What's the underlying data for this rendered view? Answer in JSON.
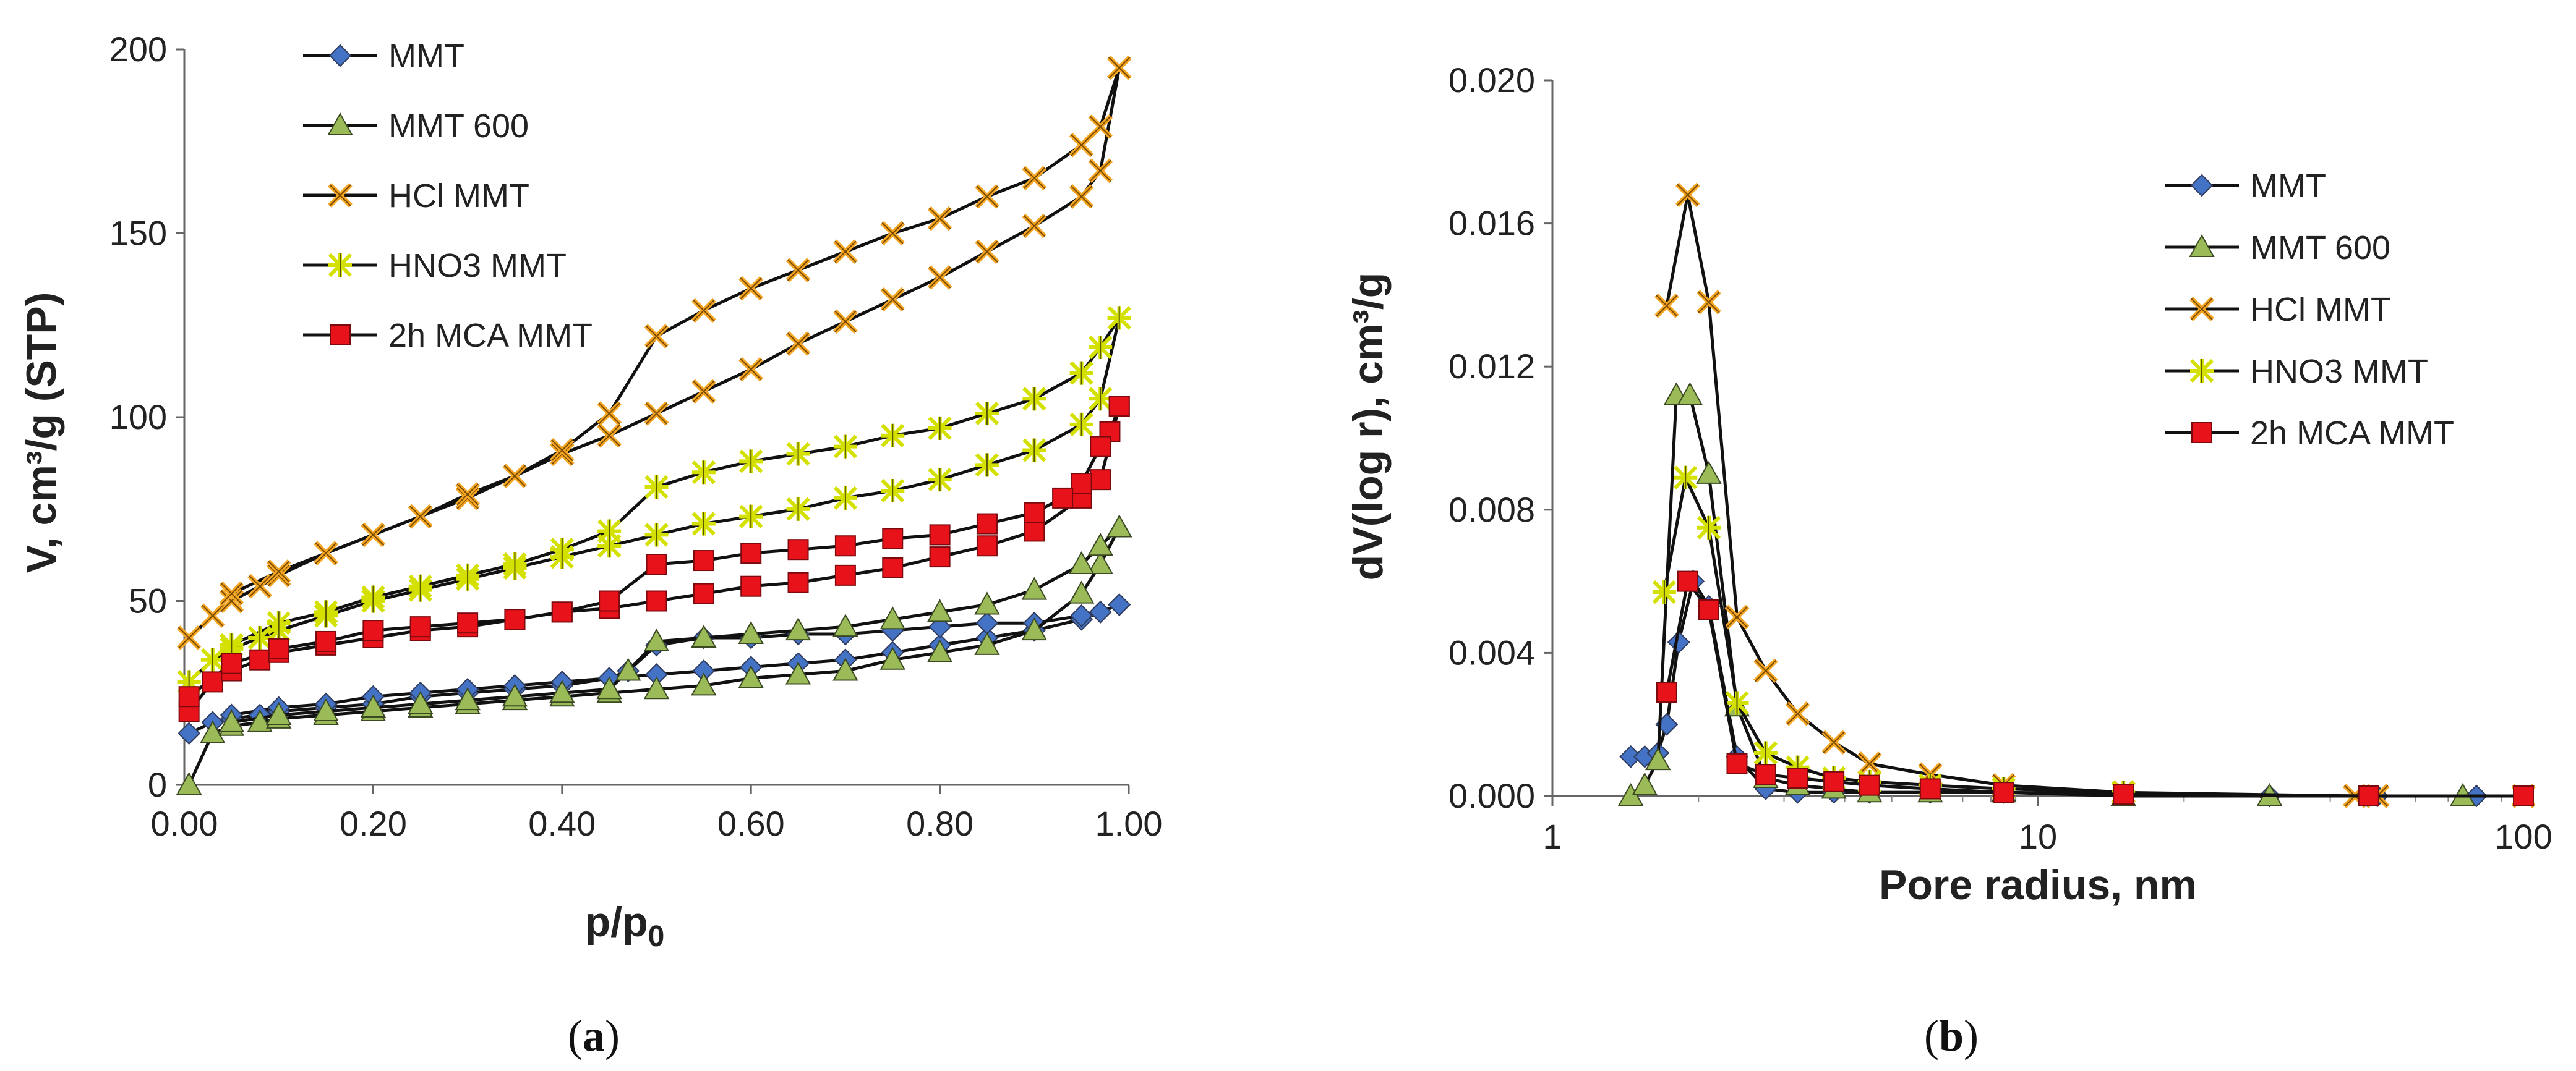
{
  "chart_data": [
    {
      "type": "line",
      "subplot_label": "a",
      "title": "",
      "xlabel": "p/p",
      "xlabel_sub": "0",
      "ylabel": "V, cm³/g (STP)",
      "xlim": [
        0,
        1
      ],
      "ylim": [
        0,
        200
      ],
      "xticks": [
        "0.00",
        "0.20",
        "0.40",
        "0.60",
        "0.80",
        "1.00"
      ],
      "yticks": [
        "0",
        "50",
        "100",
        "150",
        "200"
      ],
      "legend_position": "top-left",
      "series": [
        {
          "name": "MMT",
          "color": "#4472C4",
          "marker": "diamond",
          "adsorption": {
            "x": [
              0.005,
              0.03,
              0.05,
              0.08,
              0.1,
              0.15,
              0.2,
              0.25,
              0.3,
              0.35,
              0.4,
              0.45,
              0.5,
              0.55,
              0.6,
              0.65,
              0.7,
              0.75,
              0.8,
              0.85,
              0.9,
              0.95,
              0.97,
              0.99
            ],
            "y": [
              14,
              17,
              18,
              19,
              20,
              21,
              22,
              24,
              25,
              26,
              27,
              29,
              30,
              31,
              32,
              33,
              34,
              36,
              38,
              40,
              42,
              45,
              47,
              49
            ]
          },
          "desorption": {
            "x": [
              0.99,
              0.97,
              0.95,
              0.9,
              0.85,
              0.8,
              0.75,
              0.7,
              0.65,
              0.6,
              0.55,
              0.5,
              0.47,
              0.45,
              0.4,
              0.35,
              0.3,
              0.25,
              0.2,
              0.15,
              0.1,
              0.05
            ],
            "y": [
              49,
              47,
              46,
              44,
              44,
              43,
              42,
              41,
              41,
              40,
              40,
              38,
              31,
              29,
              28,
              27,
              26,
              25,
              24,
              22,
              21,
              19
            ]
          }
        },
        {
          "name": "MMT 600",
          "color": "#9BBB59",
          "marker": "triangle",
          "adsorption": {
            "x": [
              0.005,
              0.03,
              0.05,
              0.08,
              0.1,
              0.15,
              0.2,
              0.25,
              0.3,
              0.35,
              0.4,
              0.45,
              0.5,
              0.55,
              0.6,
              0.65,
              0.7,
              0.75,
              0.8,
              0.85,
              0.9,
              0.95,
              0.97,
              0.99
            ],
            "y": [
              0,
              14,
              16,
              17,
              18,
              19,
              20,
              21,
              22,
              23,
              24,
              25,
              26,
              27,
              29,
              30,
              31,
              34,
              36,
              38,
              42,
              52,
              60,
              70
            ]
          },
          "desorption": {
            "x": [
              0.99,
              0.97,
              0.95,
              0.9,
              0.85,
              0.8,
              0.75,
              0.7,
              0.65,
              0.6,
              0.55,
              0.5,
              0.47,
              0.45,
              0.4,
              0.35,
              0.3,
              0.25,
              0.2,
              0.15,
              0.1,
              0.05
            ],
            "y": [
              70,
              65,
              60,
              53,
              49,
              47,
              45,
              43,
              42,
              41,
              40,
              39,
              31,
              26,
              25,
              24,
              23,
              22,
              21,
              20,
              19,
              17
            ]
          }
        },
        {
          "name": "HCl MMT",
          "color": "#F5A623",
          "marker": "x",
          "adsorption": {
            "x": [
              0.005,
              0.03,
              0.05,
              0.08,
              0.1,
              0.15,
              0.2,
              0.25,
              0.3,
              0.35,
              0.4,
              0.45,
              0.5,
              0.55,
              0.6,
              0.65,
              0.7,
              0.75,
              0.8,
              0.85,
              0.9,
              0.95,
              0.97,
              0.99
            ],
            "y": [
              40,
              46,
              50,
              54,
              57,
              63,
              68,
              73,
              78,
              84,
              90,
              95,
              101,
              107,
              113,
              120,
              126,
              132,
              138,
              145,
              152,
              160,
              167,
              195
            ]
          },
          "desorption": {
            "x": [
              0.99,
              0.97,
              0.95,
              0.9,
              0.85,
              0.8,
              0.75,
              0.7,
              0.65,
              0.6,
              0.55,
              0.5,
              0.45,
              0.4,
              0.35,
              0.3,
              0.25,
              0.2,
              0.15,
              0.1,
              0.05
            ],
            "y": [
              195,
              179,
              174,
              165,
              160,
              154,
              150,
              145,
              140,
              135,
              129,
              122,
              101,
              91,
              84,
              79,
              73,
              68,
              63,
              58,
              52
            ]
          }
        },
        {
          "name": "HNO3 MMT",
          "color": "#D4E000",
          "marker": "asterisk",
          "adsorption": {
            "x": [
              0.005,
              0.03,
              0.05,
              0.08,
              0.1,
              0.15,
              0.2,
              0.25,
              0.3,
              0.35,
              0.4,
              0.45,
              0.5,
              0.55,
              0.6,
              0.65,
              0.7,
              0.75,
              0.8,
              0.85,
              0.9,
              0.95,
              0.97,
              0.99
            ],
            "y": [
              28,
              34,
              37,
              40,
              42,
              46,
              50,
              53,
              56,
              59,
              62,
              65,
              68,
              71,
              73,
              75,
              78,
              80,
              83,
              87,
              91,
              98,
              105,
              127
            ]
          },
          "desorption": {
            "x": [
              0.99,
              0.97,
              0.95,
              0.9,
              0.85,
              0.8,
              0.75,
              0.7,
              0.65,
              0.6,
              0.55,
              0.5,
              0.45,
              0.4,
              0.35,
              0.3,
              0.25,
              0.2,
              0.15,
              0.1,
              0.05
            ],
            "y": [
              127,
              119,
              112,
              105,
              101,
              97,
              95,
              92,
              90,
              88,
              85,
              81,
              69,
              64,
              60,
              57,
              54,
              51,
              47,
              44,
              38
            ]
          }
        },
        {
          "name": "2h MCA MMT",
          "color": "#E8121A",
          "marker": "square",
          "adsorption": {
            "x": [
              0.005,
              0.03,
              0.05,
              0.08,
              0.1,
              0.15,
              0.2,
              0.25,
              0.3,
              0.35,
              0.4,
              0.45,
              0.5,
              0.55,
              0.6,
              0.65,
              0.7,
              0.75,
              0.8,
              0.85,
              0.9,
              0.95,
              0.97,
              0.99
            ],
            "y": [
              20,
              28,
              31,
              34,
              36,
              38,
              40,
              42,
              43,
              45,
              47,
              48,
              50,
              52,
              54,
              55,
              57,
              59,
              62,
              65,
              69,
              78,
              83,
              103
            ]
          },
          "desorption": {
            "x": [
              0.99,
              0.98,
              0.97,
              0.95,
              0.93,
              0.9,
              0.85,
              0.8,
              0.75,
              0.7,
              0.65,
              0.6,
              0.55,
              0.5,
              0.45,
              0.4,
              0.35,
              0.3,
              0.25,
              0.2,
              0.15,
              0.1,
              0.05,
              0.005
            ],
            "y": [
              103,
              96,
              92,
              82,
              78,
              74,
              71,
              68,
              67,
              65,
              64,
              63,
              61,
              60,
              50,
              47,
              45,
              44,
              43,
              42,
              39,
              37,
              33,
              24
            ]
          }
        }
      ]
    },
    {
      "type": "line",
      "subplot_label": "b",
      "title": "",
      "xlabel": "Pore radius, nm",
      "ylabel": "dV(log r), cm³/g",
      "xscale": "log",
      "xlim": [
        1,
        100
      ],
      "ylim": [
        0,
        0.02
      ],
      "xticks": [
        "1",
        "10",
        "100"
      ],
      "yticks": [
        "0.000",
        "0.004",
        "0.008",
        "0.012",
        "0.016",
        "0.020"
      ],
      "legend_position": "right",
      "series": [
        {
          "name": "MMT",
          "color": "#4472C4",
          "marker": "diamond",
          "x": [
            1.45,
            1.55,
            1.65,
            1.72,
            1.82,
            1.95,
            2.1,
            2.4,
            2.75,
            3.2,
            3.8,
            4.5,
            6,
            8.5,
            15,
            30,
            50,
            80
          ],
          "y": [
            0.0011,
            0.0011,
            0.0012,
            0.002,
            0.0043,
            0.006,
            0.0053,
            0.0011,
            0.0002,
            0.0001,
            0.0001,
            0.0001,
            0.0001,
            0.0001,
            5e-05,
            0.0,
            0.0,
            0.0
          ]
        },
        {
          "name": "MMT 600",
          "color": "#9BBB59",
          "marker": "triangle",
          "x": [
            1.45,
            1.55,
            1.65,
            1.8,
            1.92,
            2.1,
            2.4,
            2.75,
            3.2,
            3.8,
            4.5,
            6,
            8.5,
            15,
            30,
            75
          ],
          "y": [
            0.0,
            0.0003,
            0.001,
            0.0112,
            0.0112,
            0.009,
            0.0025,
            0.0005,
            0.0003,
            0.0002,
            0.0001,
            0.0001,
            0.0001,
            0.0,
            0.0,
            0.0
          ]
        },
        {
          "name": "HCl MMT",
          "color": "#F5A623",
          "marker": "x",
          "x": [
            1.72,
            1.9,
            2.1,
            2.4,
            2.75,
            3.2,
            3.8,
            4.5,
            6,
            8.5,
            15,
            45,
            50,
            100
          ],
          "y": [
            0.0137,
            0.0168,
            0.0138,
            0.005,
            0.0035,
            0.0023,
            0.0015,
            0.0009,
            0.0006,
            0.0003,
            0.0001,
            0.0,
            0.0,
            0.0
          ]
        },
        {
          "name": "HNO3 MMT",
          "color": "#D4E000",
          "marker": "asterisk",
          "x": [
            1.7,
            1.88,
            2.1,
            2.4,
            2.75,
            3.2,
            3.8,
            4.5,
            6,
            8.5,
            15
          ],
          "y": [
            0.0057,
            0.0089,
            0.0075,
            0.0026,
            0.0012,
            0.0008,
            0.0005,
            0.0004,
            0.0003,
            0.0002,
            0.0001
          ]
        },
        {
          "name": "2h MCA MMT",
          "color": "#E8121A",
          "marker": "square",
          "x": [
            1.72,
            1.9,
            2.1,
            2.4,
            2.75,
            3.2,
            3.8,
            4.5,
            6,
            8.5,
            15,
            48,
            100
          ],
          "y": [
            0.0029,
            0.006,
            0.0052,
            0.0009,
            0.0006,
            0.0005,
            0.0004,
            0.0003,
            0.0002,
            0.0001,
            5e-05,
            0.0,
            0.0
          ]
        }
      ]
    }
  ]
}
